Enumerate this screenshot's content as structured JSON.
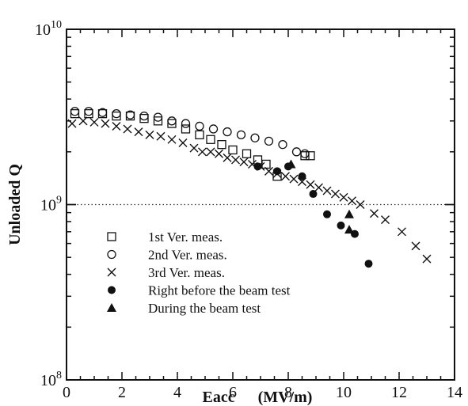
{
  "chart_data": {
    "type": "scatter",
    "title": "",
    "xlabel": "Eacc",
    "xlabel_unit": "(MV/m)",
    "ylabel": "Unloaded  Q",
    "x_range": [
      0,
      14
    ],
    "y_range": [
      100000000,
      10000000000
    ],
    "y_scale": "log",
    "x_ticks": [
      0,
      2,
      4,
      6,
      8,
      10,
      12,
      14
    ],
    "y_tick_labels": [
      {
        "value": 100000000,
        "base": "10",
        "exp": "8"
      },
      {
        "value": 1000000000,
        "base": "10",
        "exp": "9"
      },
      {
        "value": 10000000000,
        "base": "10",
        "exp": "10"
      }
    ],
    "reference_line": {
      "y": 1000000000,
      "style": "dotted"
    },
    "grid": false,
    "legend_position": "lower-left",
    "series": [
      {
        "name": "1st Ver. meas.",
        "marker": "open-square",
        "points": [
          [
            0.3,
            3300000000.0
          ],
          [
            0.8,
            3300000000.0
          ],
          [
            1.3,
            3300000000.0
          ],
          [
            1.8,
            3200000000.0
          ],
          [
            2.3,
            3200000000.0
          ],
          [
            2.8,
            3100000000.0
          ],
          [
            3.3,
            3000000000.0
          ],
          [
            3.8,
            2900000000.0
          ],
          [
            4.3,
            2700000000.0
          ],
          [
            4.8,
            2500000000.0
          ],
          [
            5.2,
            2350000000.0
          ],
          [
            5.6,
            2200000000.0
          ],
          [
            6.0,
            2050000000.0
          ],
          [
            6.5,
            1950000000.0
          ],
          [
            6.9,
            1800000000.0
          ],
          [
            7.2,
            1700000000.0
          ],
          [
            7.6,
            1450000000.0
          ],
          [
            8.6,
            1900000000.0
          ],
          [
            8.8,
            1900000000.0
          ]
        ]
      },
      {
        "name": "2nd Ver. meas.",
        "marker": "open-circle",
        "points": [
          [
            0.3,
            3400000000.0
          ],
          [
            0.8,
            3400000000.0
          ],
          [
            1.3,
            3350000000.0
          ],
          [
            1.8,
            3300000000.0
          ],
          [
            2.3,
            3250000000.0
          ],
          [
            2.8,
            3200000000.0
          ],
          [
            3.3,
            3150000000.0
          ],
          [
            3.8,
            3000000000.0
          ],
          [
            4.3,
            2900000000.0
          ],
          [
            4.8,
            2800000000.0
          ],
          [
            5.3,
            2700000000.0
          ],
          [
            5.8,
            2600000000.0
          ],
          [
            6.3,
            2500000000.0
          ],
          [
            6.8,
            2400000000.0
          ],
          [
            7.3,
            2300000000.0
          ],
          [
            7.8,
            2200000000.0
          ],
          [
            8.3,
            2000000000.0
          ],
          [
            8.6,
            1950000000.0
          ]
        ]
      },
      {
        "name": "3rd Ver. meas.",
        "marker": "x",
        "points": [
          [
            0.2,
            2900000000.0
          ],
          [
            0.6,
            3000000000.0
          ],
          [
            1.0,
            2950000000.0
          ],
          [
            1.4,
            2900000000.0
          ],
          [
            1.8,
            2800000000.0
          ],
          [
            2.2,
            2700000000.0
          ],
          [
            2.6,
            2600000000.0
          ],
          [
            3.0,
            2500000000.0
          ],
          [
            3.4,
            2450000000.0
          ],
          [
            3.8,
            2350000000.0
          ],
          [
            4.2,
            2250000000.0
          ],
          [
            4.6,
            2100000000.0
          ],
          [
            4.9,
            2000000000.0
          ],
          [
            5.2,
            2000000000.0
          ],
          [
            5.5,
            1950000000.0
          ],
          [
            5.8,
            1850000000.0
          ],
          [
            6.1,
            1800000000.0
          ],
          [
            6.4,
            1750000000.0
          ],
          [
            6.7,
            1700000000.0
          ],
          [
            7.0,
            1650000000.0
          ],
          [
            7.3,
            1550000000.0
          ],
          [
            7.6,
            1500000000.0
          ],
          [
            7.9,
            1450000000.0
          ],
          [
            8.2,
            1400000000.0
          ],
          [
            8.5,
            1350000000.0
          ],
          [
            8.8,
            1300000000.0
          ],
          [
            9.1,
            1250000000.0
          ],
          [
            9.4,
            1200000000.0
          ],
          [
            9.7,
            1150000000.0
          ],
          [
            10.0,
            1100000000.0
          ],
          [
            10.3,
            1050000000.0
          ],
          [
            10.6,
            1000000000.0
          ],
          [
            11.1,
            890000000.0
          ],
          [
            11.5,
            820000000.0
          ],
          [
            12.1,
            700000000.0
          ],
          [
            12.6,
            580000000.0
          ],
          [
            13.0,
            490000000.0
          ]
        ]
      },
      {
        "name": "Right before the beam test",
        "marker": "filled-circle",
        "points": [
          [
            6.9,
            1650000000.0
          ],
          [
            7.6,
            1550000000.0
          ],
          [
            8.0,
            1650000000.0
          ],
          [
            8.5,
            1450000000.0
          ],
          [
            8.9,
            1150000000.0
          ],
          [
            9.4,
            880000000.0
          ],
          [
            9.9,
            760000000.0
          ],
          [
            10.4,
            680000000.0
          ],
          [
            10.9,
            460000000.0
          ]
        ]
      },
      {
        "name": "During the beam test",
        "marker": "filled-triangle",
        "points": [
          [
            8.1,
            1700000000.0
          ],
          [
            10.2,
            880000000.0
          ],
          [
            10.2,
            720000000.0
          ]
        ]
      }
    ]
  }
}
